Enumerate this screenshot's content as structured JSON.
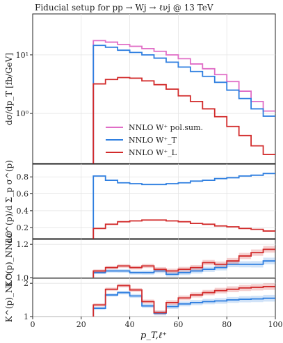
{
  "chart_data": {
    "type": "line",
    "title": "Fiducial setup for pp → Wj → ℓνj @ 13 TeV",
    "xlabel": "p_T,ℓ⁺",
    "xlim": [
      0,
      100
    ],
    "x_ticks": [
      "0",
      "20",
      "40",
      "60",
      "80",
      "100"
    ],
    "bin_edges": [
      25,
      30,
      35,
      40,
      45,
      50,
      55,
      60,
      65,
      70,
      75,
      80,
      85,
      90,
      95,
      100
    ],
    "series_colors": [
      "#e06dc6",
      "#2f7fe0",
      "#d22b2b"
    ],
    "legend": {
      "placement": "lower-center",
      "entries": [
        "NNLO W⁺ pol.sum.",
        "NNLO W⁺_T",
        "NNLO W⁺_L"
      ]
    },
    "panels": [
      {
        "name": "main",
        "ylabel": "dσ/dp_T [fb/GeV]",
        "scale": "log",
        "ylim": [
          0.14,
          50
        ],
        "y_ticks": [
          {
            "v": 10,
            "label": "10¹"
          },
          {
            "v": 1,
            "label": "10⁰"
          }
        ],
        "series": [
          {
            "name": "NNLO W⁺ pol.sum.",
            "values": [
              17.5,
              16.5,
              15.0,
              14.0,
              12.8,
              11.5,
              10.0,
              8.6,
              7.0,
              5.8,
              4.6,
              3.5,
              2.4,
              1.6,
              1.1
            ]
          },
          {
            "name": "NNLO W⁺_T",
            "values": [
              14.5,
              13.5,
              12.0,
              11.0,
              10.0,
              8.8,
              7.5,
              6.2,
              5.2,
              4.3,
              3.4,
              2.5,
              1.8,
              1.2,
              0.9
            ]
          },
          {
            "name": "NNLO W⁺_L",
            "values": [
              3.2,
              3.8,
              4.1,
              4.0,
              3.6,
              3.1,
              2.6,
              2.0,
              1.6,
              1.2,
              0.88,
              0.6,
              0.42,
              0.28,
              0.2
            ]
          }
        ]
      },
      {
        "name": "fraction",
        "ylabel": "dσ^(p)/d Σ_p σ^(p)",
        "scale": "linear",
        "ylim": [
          0.07,
          0.95
        ],
        "y_ticks": [
          {
            "v": 0.2,
            "label": "0.2"
          },
          {
            "v": 0.4,
            "label": "0.4"
          },
          {
            "v": 0.6,
            "label": "0.6"
          },
          {
            "v": 0.8,
            "label": "0.8"
          }
        ],
        "series": [
          {
            "name": "NNLO W⁺_T",
            "values": [
              0.81,
              0.76,
              0.73,
              0.72,
              0.71,
              0.71,
              0.72,
              0.73,
              0.75,
              0.76,
              0.78,
              0.79,
              0.81,
              0.82,
              0.84
            ]
          },
          {
            "name": "NNLO W⁺_L",
            "values": [
              0.19,
              0.24,
              0.27,
              0.28,
              0.29,
              0.29,
              0.28,
              0.27,
              0.25,
              0.24,
              0.22,
              0.21,
              0.19,
              0.18,
              0.16
            ]
          }
        ]
      },
      {
        "name": "K_NNLO",
        "ylabel": "K^(p)_NNLO",
        "scale": "linear",
        "ylim": [
          1.0,
          1.23
        ],
        "y_ticks": [
          {
            "v": 1.0,
            "label": "1.0"
          },
          {
            "v": 1.2,
            "label": "1.2"
          }
        ],
        "series": [
          {
            "name": "NNLO W⁺_T",
            "values": [
              1.03,
              1.04,
              1.04,
              1.03,
              1.03,
              1.04,
              1.02,
              1.03,
              1.04,
              1.05,
              1.06,
              1.08,
              1.08,
              1.08,
              1.1
            ]
          },
          {
            "name": "NNLO W⁺_L",
            "values": [
              1.04,
              1.06,
              1.07,
              1.06,
              1.07,
              1.05,
              1.04,
              1.05,
              1.06,
              1.09,
              1.08,
              1.1,
              1.13,
              1.15,
              1.17
            ]
          }
        ]
      },
      {
        "name": "K_NLO",
        "ylabel": "K^(p)_NLO",
        "scale": "linear",
        "ylim": [
          1.0,
          2.15
        ],
        "y_ticks": [
          {
            "v": 1,
            "label": "1"
          },
          {
            "v": 2,
            "label": "2"
          }
        ],
        "series": [
          {
            "name": "NNLO W⁺_T",
            "values": [
              1.25,
              1.65,
              1.72,
              1.62,
              1.32,
              1.1,
              1.3,
              1.38,
              1.42,
              1.45,
              1.47,
              1.5,
              1.52,
              1.53,
              1.55
            ]
          },
          {
            "name": "NNLO W⁺_L",
            "values": [
              1.35,
              1.82,
              1.93,
              1.8,
              1.45,
              1.12,
              1.42,
              1.56,
              1.65,
              1.72,
              1.78,
              1.82,
              1.86,
              1.88,
              1.9
            ]
          }
        ]
      }
    ]
  }
}
